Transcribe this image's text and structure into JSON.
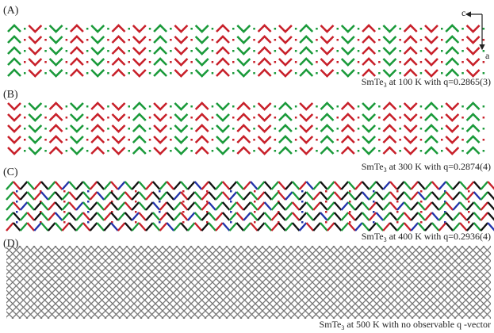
{
  "panels": [
    {
      "label": "(A)",
      "caption": {
        "formula": "SmTe",
        "subscript": "3",
        "text": " at 100 K with q=0.2865(3)"
      }
    },
    {
      "label": "(B)",
      "caption": {
        "formula": "SmTe",
        "subscript": "3",
        "text": " at 300 K with q=0.2874(4)"
      }
    },
    {
      "label": "(C)",
      "caption": {
        "formula": "SmTe",
        "subscript": "3",
        "text": " at 400 K with q=0.2936(4)"
      }
    },
    {
      "label": "(D)",
      "caption": {
        "formula": "SmTe",
        "subscript": "3",
        "text": " at 500 K with no observable q -vector"
      }
    }
  ],
  "axes": {
    "horizontal": "c",
    "vertical": "a"
  }
}
